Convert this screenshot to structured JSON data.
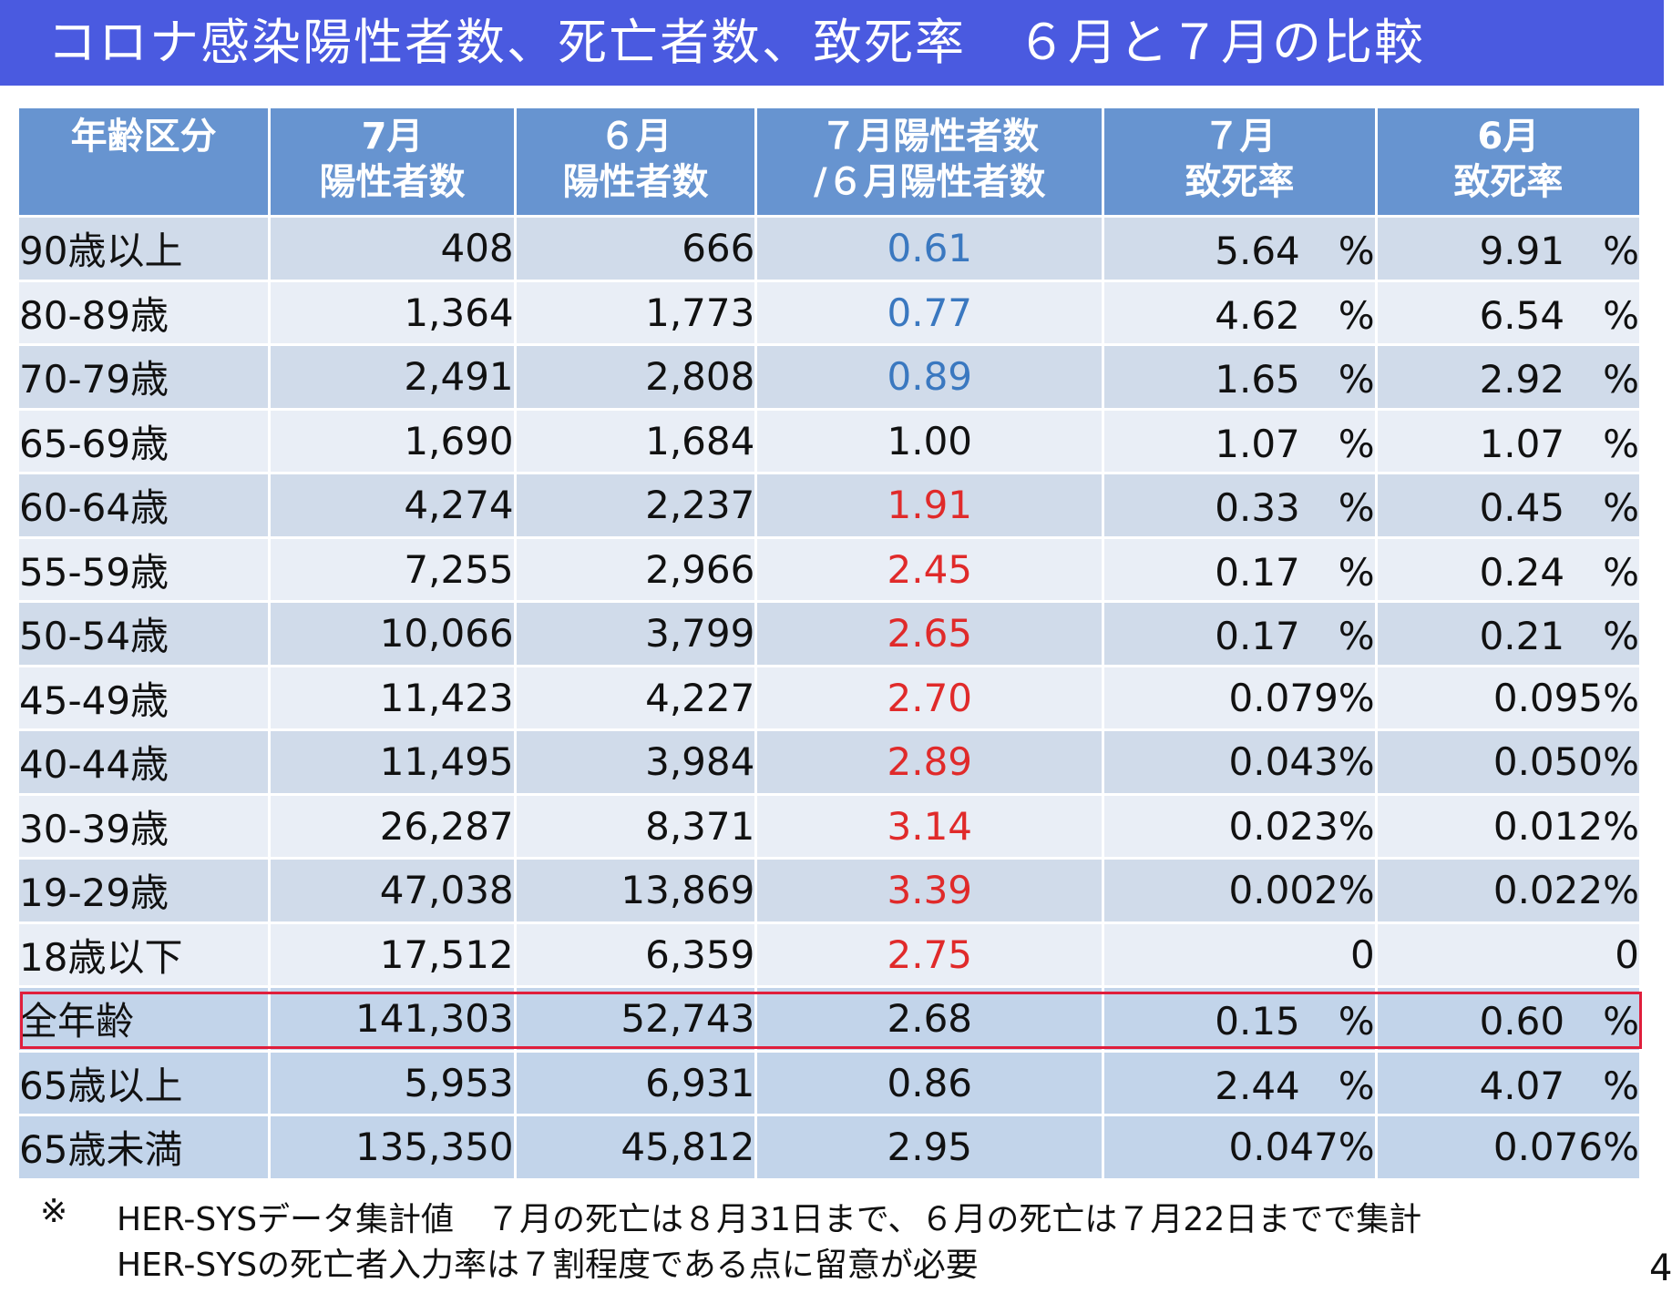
{
  "title": "コロナ感染陽性者数、死亡者数、致死率　６月と７月の比較",
  "table": {
    "headers": [
      {
        "line1": "年齢区分",
        "line2": ""
      },
      {
        "line1": "7月",
        "line2": "陽性者数"
      },
      {
        "line1": "６月",
        "line2": "陽性者数"
      },
      {
        "line1": "７月陽性者数",
        "line2": "/６月陽性者数"
      },
      {
        "line1": "７月",
        "line2": "致死率"
      },
      {
        "line1": "6月",
        "line2": "致死率"
      }
    ],
    "rows": [
      {
        "age": "90歳以上",
        "jul": "408",
        "jun": "666",
        "ratio": "0.61",
        "ratio_color": "#3a78c0",
        "jul_rate": "5.64　%",
        "jun_rate": "9.91　%"
      },
      {
        "age": "80-89歳",
        "jul": "1,364",
        "jun": "1,773",
        "ratio": "0.77",
        "ratio_color": "#3a78c0",
        "jul_rate": "4.62　%",
        "jun_rate": "6.54　%"
      },
      {
        "age": "70-79歳",
        "jul": "2,491",
        "jun": "2,808",
        "ratio": "0.89",
        "ratio_color": "#3a78c0",
        "jul_rate": "1.65　%",
        "jun_rate": "2.92　%"
      },
      {
        "age": "65-69歳",
        "jul": "1,690",
        "jun": "1,684",
        "ratio": "1.00",
        "ratio_color": "#111111",
        "jul_rate": "1.07　%",
        "jun_rate": "1.07　%"
      },
      {
        "age": "60-64歳",
        "jul": "4,274",
        "jun": "2,237",
        "ratio": "1.91",
        "ratio_color": "#e02a2a",
        "jul_rate": "0.33　%",
        "jun_rate": "0.45　%"
      },
      {
        "age": "55-59歳",
        "jul": "7,255",
        "jun": "2,966",
        "ratio": "2.45",
        "ratio_color": "#e02a2a",
        "jul_rate": "0.17　%",
        "jun_rate": "0.24　%"
      },
      {
        "age": "50-54歳",
        "jul": "10,066",
        "jun": "3,799",
        "ratio": "2.65",
        "ratio_color": "#e02a2a",
        "jul_rate": "0.17　%",
        "jun_rate": "0.21　%"
      },
      {
        "age": "45-49歳",
        "jul": "11,423",
        "jun": "4,227",
        "ratio": "2.70",
        "ratio_color": "#e02a2a",
        "jul_rate": "0.079%",
        "jun_rate": "0.095%"
      },
      {
        "age": "40-44歳",
        "jul": "11,495",
        "jun": "3,984",
        "ratio": "2.89",
        "ratio_color": "#e02a2a",
        "jul_rate": "0.043%",
        "jun_rate": "0.050%"
      },
      {
        "age": "30-39歳",
        "jul": "26,287",
        "jun": "8,371",
        "ratio": "3.14",
        "ratio_color": "#e02a2a",
        "jul_rate": "0.023%",
        "jun_rate": "0.012%"
      },
      {
        "age": "19-29歳",
        "jul": "47,038",
        "jun": "13,869",
        "ratio": "3.39",
        "ratio_color": "#e02a2a",
        "jul_rate": "0.002%",
        "jun_rate": "0.022%"
      },
      {
        "age": "18歳以下",
        "jul": "17,512",
        "jun": "6,359",
        "ratio": "2.75",
        "ratio_color": "#e02a2a",
        "jul_rate": "0",
        "jun_rate": "0"
      },
      {
        "age": "全年齢",
        "jul": "141,303",
        "jun": "52,743",
        "ratio": "2.68",
        "ratio_color": "#111111",
        "jul_rate": "0.15　%",
        "jun_rate": "0.60　%"
      },
      {
        "age": "65歳以上",
        "jul": "5,953",
        "jun": "6,931",
        "ratio": "0.86",
        "ratio_color": "#111111",
        "jul_rate": "2.44　%",
        "jun_rate": "4.07　%"
      },
      {
        "age": "65歳未満",
        "jul": "135,350",
        "jun": "45,812",
        "ratio": "2.95",
        "ratio_color": "#111111",
        "jul_rate": "0.047%",
        "jun_rate": "0.076%"
      }
    ],
    "highlight_color": "#e01e3c"
  },
  "footnote": {
    "mark": "※",
    "line1": "HER-SYSデータ集計値　７月の死亡は８月31日まで、６月の死亡は７月22日までで集計",
    "line2": "HER-SYSの死亡者入力率は７割程度である点に留意が必要"
  },
  "page_number": "4",
  "colors": {
    "title_bg": "#4a5ae0",
    "header_bg": "#6794d0",
    "band_dark": "#d0dbea",
    "band_light": "#e9eef6",
    "band_summary": "#c2d4ea"
  }
}
